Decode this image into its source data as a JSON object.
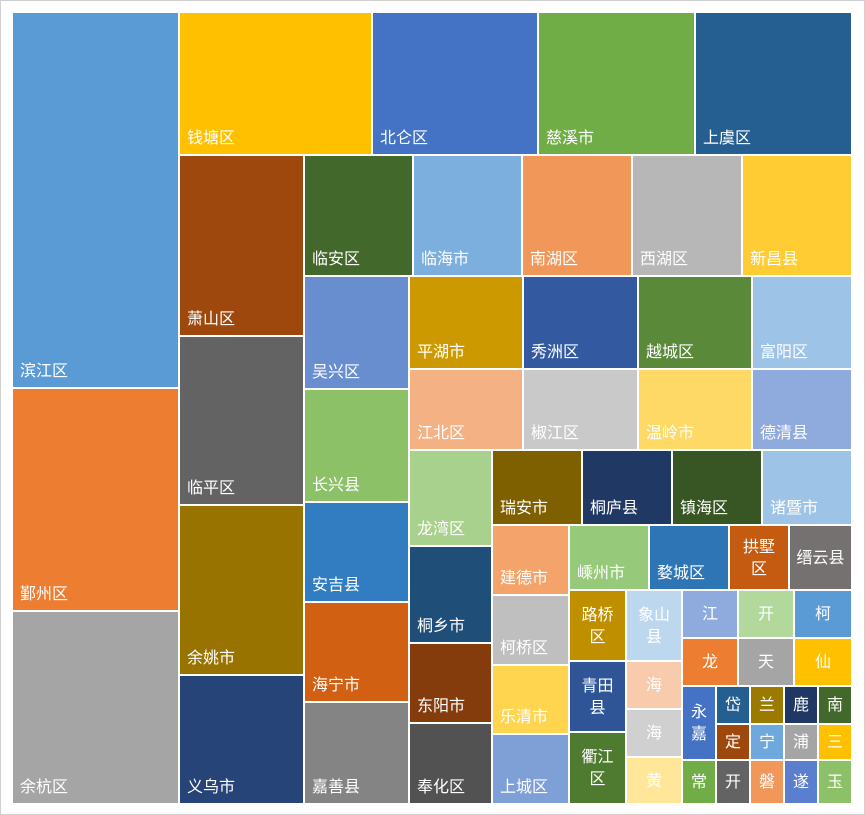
{
  "chart_data": {
    "type": "treemap",
    "title": "",
    "value_note": "values estimated from relative tile area",
    "cells": [
      {
        "name": "滨江区",
        "value": 612,
        "color": "#5B9BD5"
      },
      {
        "name": "鄞州区",
        "value": 361,
        "color": "#ED7D31"
      },
      {
        "name": "余杭区",
        "value": 312,
        "color": "#A5A5A5"
      },
      {
        "name": "钱塘区",
        "value": 266,
        "color": "#FFC000"
      },
      {
        "name": "北仑区",
        "value": 228,
        "color": "#4472C4"
      },
      {
        "name": "慈溪市",
        "value": 216,
        "color": "#70AD47"
      },
      {
        "name": "上虞区",
        "value": 216,
        "color": "#255E91"
      },
      {
        "name": "萧山区",
        "value": 217,
        "color": "#9E480E"
      },
      {
        "name": "临平区",
        "value": 203,
        "color": "#636363"
      },
      {
        "name": "余姚市",
        "value": 204,
        "color": "#997300"
      },
      {
        "name": "义乌市",
        "value": 154,
        "color": "#264478"
      },
      {
        "name": "临安区",
        "value": 125,
        "color": "#43682B"
      },
      {
        "name": "临海市",
        "value": 125,
        "color": "#7CAFDD"
      },
      {
        "name": "南湖区",
        "value": 126,
        "color": "#F1975A"
      },
      {
        "name": "西湖区",
        "value": 126,
        "color": "#B7B7B7"
      },
      {
        "name": "新昌县",
        "value": 126,
        "color": "#FFCD33"
      },
      {
        "name": "吴兴区",
        "value": 112,
        "color": "#698ED0"
      },
      {
        "name": "长兴县",
        "value": 112,
        "color": "#8CC168"
      },
      {
        "name": "安吉县",
        "value": 99,
        "color": "#327DC2"
      },
      {
        "name": "海宁市",
        "value": 99,
        "color": "#D26012"
      },
      {
        "name": "嘉善县",
        "value": 101,
        "color": "#848484"
      },
      {
        "name": "平湖市",
        "value": 100,
        "color": "#CC9A00"
      },
      {
        "name": "秀洲区",
        "value": 101,
        "color": "#335AA1"
      },
      {
        "name": "越城区",
        "value": 100,
        "color": "#5A8A39"
      },
      {
        "name": "富阳区",
        "value": 87,
        "color": "#9DC3E6"
      },
      {
        "name": "江北区",
        "value": 87,
        "color": "#F4B183"
      },
      {
        "name": "椒江区",
        "value": 87,
        "color": "#C9C9C9"
      },
      {
        "name": "温岭市",
        "value": 87,
        "color": "#FFD966"
      },
      {
        "name": "德清县",
        "value": 76,
        "color": "#8FAADC"
      },
      {
        "name": "龙湾区",
        "value": 74,
        "color": "#A9D18E"
      },
      {
        "name": "桐乡市",
        "value": 75,
        "color": "#1F4E79"
      },
      {
        "name": "东阳市",
        "value": 62,
        "color": "#843C0C"
      },
      {
        "name": "奉化区",
        "value": 62,
        "color": "#525252"
      },
      {
        "name": "瑞安市",
        "value": 63,
        "color": "#7F6000"
      },
      {
        "name": "桐庐县",
        "value": 63,
        "color": "#203864"
      },
      {
        "name": "镇海区",
        "value": 63,
        "color": "#375623"
      },
      {
        "name": "诸暨市",
        "value": 63,
        "color": "#9DC3E6"
      },
      {
        "name": "建德市",
        "value": 50,
        "color": "#F4A46A"
      },
      {
        "name": "柯桥区",
        "value": 50,
        "color": "#BFBFBF"
      },
      {
        "name": "乐清市",
        "value": 49,
        "color": "#FFD54F"
      },
      {
        "name": "上城区",
        "value": 50,
        "color": "#7F9FD7"
      },
      {
        "name": "嵊州市",
        "value": 48,
        "color": "#97C97A"
      },
      {
        "name": "婺城区",
        "value": 48,
        "color": "#2E75B6"
      },
      {
        "name": "拱墅区",
        "value": 35,
        "color": "#C55A11"
      },
      {
        "name": "缙云县",
        "value": 37,
        "color": "#767171"
      },
      {
        "name": "路桥区",
        "value": 37,
        "color": "#BF8F00"
      },
      {
        "name": "青田县",
        "value": 37,
        "color": "#2F5597"
      },
      {
        "name": "衢江区",
        "value": 37,
        "color": "#4E7B30"
      },
      {
        "name": "象山县",
        "value": 36,
        "color": "#BDD7EE"
      },
      {
        "name": "海",
        "value": 24,
        "color": "#F8CBAD"
      },
      {
        "name": "海",
        "value": 24,
        "color": "#D0D0D0"
      },
      {
        "name": "黄",
        "value": 23,
        "color": "#FFE699"
      },
      {
        "name": "江",
        "value": 24,
        "color": "#8FAADC"
      },
      {
        "name": "开",
        "value": 24,
        "color": "#B3D89B"
      },
      {
        "name": "柯",
        "value": 25,
        "color": "#5B9BD5"
      },
      {
        "name": "龙",
        "value": 24,
        "color": "#ED7D31"
      },
      {
        "name": "天",
        "value": 24,
        "color": "#A5A5A5"
      },
      {
        "name": "仙",
        "value": 25,
        "color": "#FFC000"
      },
      {
        "name": "永嘉",
        "value": 22,
        "color": "#4472C4"
      },
      {
        "name": "常",
        "value": 13,
        "color": "#70AD47"
      },
      {
        "name": "岱",
        "value": 11,
        "color": "#255E91"
      },
      {
        "name": "兰",
        "value": 11,
        "color": "#9C7A00"
      },
      {
        "name": "鹿",
        "value": 11,
        "color": "#1F3864"
      },
      {
        "name": "南",
        "value": 11,
        "color": "#43682B"
      },
      {
        "name": "定",
        "value": 10,
        "color": "#9E480E"
      },
      {
        "name": "宁",
        "value": 10,
        "color": "#6FA8DC"
      },
      {
        "name": "浦",
        "value": 10,
        "color": "#A5A5A5"
      },
      {
        "name": "三",
        "value": 10,
        "color": "#FFC000"
      },
      {
        "name": "开",
        "value": 13,
        "color": "#636363"
      },
      {
        "name": "磐",
        "value": 13,
        "color": "#F1975A"
      },
      {
        "name": "遂",
        "value": 13,
        "color": "#5B7FCF"
      },
      {
        "name": "玉",
        "value": 13,
        "color": "#8CC168"
      }
    ]
  }
}
